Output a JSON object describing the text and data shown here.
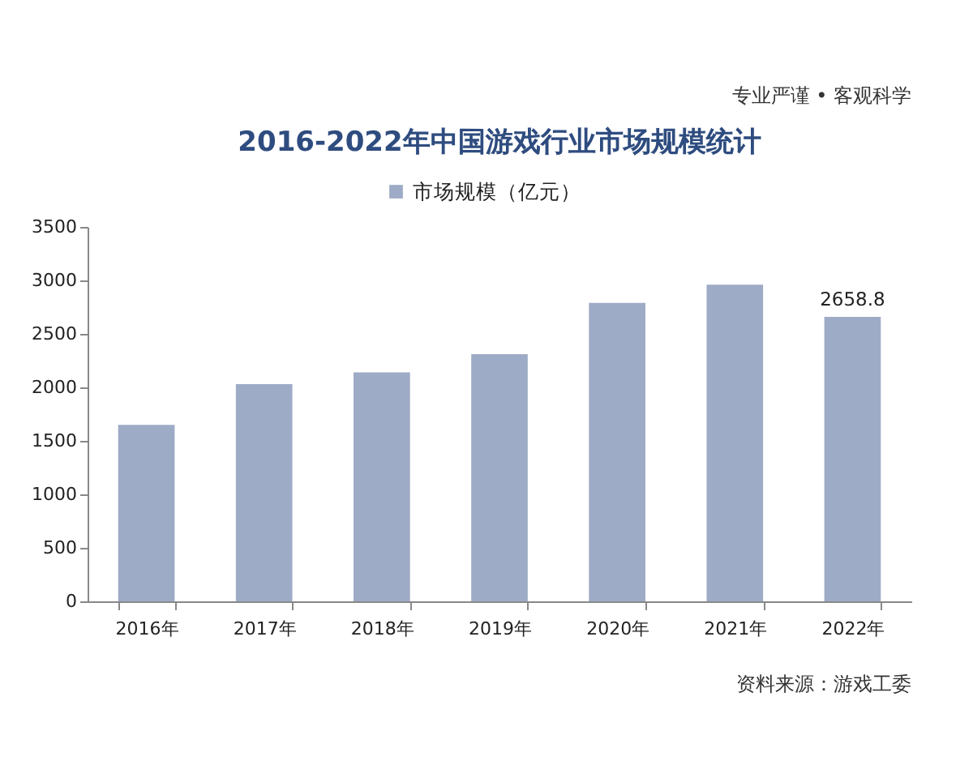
{
  "chart_data": {
    "type": "bar",
    "title": "2016-2022年中国游戏行业市场规模统计",
    "categories": [
      "2016年",
      "2017年",
      "2018年",
      "2019年",
      "2020年",
      "2021年",
      "2022年"
    ],
    "series": [
      {
        "name": "市场规模（亿元）",
        "color": "#9eabc6",
        "values": [
          1650,
          2030,
          2140,
          2310,
          2790,
          2960,
          2658.8
        ],
        "value_labels": [
          null,
          null,
          null,
          null,
          null,
          null,
          "2658.8"
        ]
      }
    ],
    "ylim": [
      0,
      3500
    ],
    "yticks": [
      0,
      500,
      1000,
      1500,
      2000,
      2500,
      3000,
      3500
    ],
    "legend": "top",
    "annotations": [
      "专业严谨 • 客观科学",
      "资料来源：游戏工委"
    ]
  }
}
